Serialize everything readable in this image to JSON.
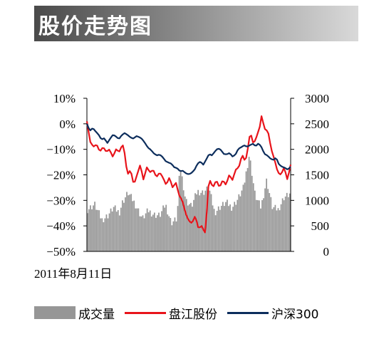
{
  "banner": {
    "title": "股价走势图"
  },
  "chart_data": {
    "type": "line",
    "title": "股价走势图",
    "date_label": "2011年8月11日",
    "left_axis": {
      "ticks": [
        "10%",
        "0%",
        "−10%",
        "−20%",
        "−30%",
        "−40%",
        "−50%"
      ],
      "ylim": [
        -50,
        10
      ]
    },
    "right_axis": {
      "ticks": [
        "3000",
        "2500",
        "2000",
        "1500",
        "1000",
        "500",
        "0"
      ],
      "ylim": [
        0,
        3000
      ]
    },
    "x_count": 120,
    "series": [
      {
        "name": "盘江股份",
        "axis": "left",
        "color": "#e8141b",
        "keypoints": [
          [
            0,
            1
          ],
          [
            2,
            -7
          ],
          [
            4,
            -9
          ],
          [
            6,
            -8
          ],
          [
            8,
            -11
          ],
          [
            10,
            -9
          ],
          [
            12,
            -11
          ],
          [
            14,
            -10
          ],
          [
            16,
            -13
          ],
          [
            18,
            -10
          ],
          [
            20,
            -11
          ],
          [
            22,
            -8
          ],
          [
            23,
            -10
          ],
          [
            25,
            -20
          ],
          [
            27,
            -18
          ],
          [
            29,
            -24
          ],
          [
            31,
            -20
          ],
          [
            33,
            -16
          ],
          [
            35,
            -22
          ],
          [
            37,
            -17
          ],
          [
            39,
            -19
          ],
          [
            41,
            -18
          ],
          [
            43,
            -21
          ],
          [
            45,
            -19
          ],
          [
            47,
            -21
          ],
          [
            49,
            -24
          ],
          [
            51,
            -21
          ],
          [
            53,
            -25
          ],
          [
            55,
            -23
          ],
          [
            57,
            -28
          ],
          [
            59,
            -30
          ],
          [
            61,
            -35
          ],
          [
            63,
            -38
          ],
          [
            65,
            -39
          ],
          [
            67,
            -36
          ],
          [
            69,
            -41
          ],
          [
            71,
            -40
          ],
          [
            73,
            -43
          ],
          [
            74,
            -36
          ],
          [
            75,
            -25
          ],
          [
            76,
            -22
          ],
          [
            78,
            -25
          ],
          [
            80,
            -22
          ],
          [
            82,
            -25
          ],
          [
            84,
            -22
          ],
          [
            86,
            -24
          ],
          [
            88,
            -20
          ],
          [
            90,
            -22
          ],
          [
            92,
            -18
          ],
          [
            94,
            -17
          ],
          [
            96,
            -12
          ],
          [
            98,
            -15
          ],
          [
            100,
            -8
          ],
          [
            101,
            -3
          ],
          [
            103,
            -8
          ],
          [
            105,
            -5
          ],
          [
            107,
            -1
          ],
          [
            108,
            3
          ],
          [
            110,
            -2
          ],
          [
            112,
            -3
          ],
          [
            114,
            -10
          ],
          [
            116,
            -14
          ],
          [
            118,
            -19
          ],
          [
            120,
            -20
          ],
          [
            122,
            -17
          ],
          [
            124,
            -22
          ],
          [
            126,
            -16
          ]
        ]
      },
      {
        "name": "沪深300",
        "axis": "right",
        "color": "#0c2d5c",
        "keypoints": [
          [
            0,
            2500
          ],
          [
            2,
            2360
          ],
          [
            4,
            2420
          ],
          [
            6,
            2350
          ],
          [
            8,
            2290
          ],
          [
            10,
            2190
          ],
          [
            12,
            2220
          ],
          [
            14,
            2120
          ],
          [
            16,
            2210
          ],
          [
            18,
            2290
          ],
          [
            20,
            2250
          ],
          [
            22,
            2200
          ],
          [
            24,
            2280
          ],
          [
            26,
            2320
          ],
          [
            28,
            2280
          ],
          [
            30,
            2230
          ],
          [
            32,
            2210
          ],
          [
            34,
            2260
          ],
          [
            36,
            2240
          ],
          [
            38,
            2200
          ],
          [
            40,
            2120
          ],
          [
            42,
            2030
          ],
          [
            44,
            1990
          ],
          [
            46,
            1920
          ],
          [
            48,
            1880
          ],
          [
            50,
            1900
          ],
          [
            52,
            1850
          ],
          [
            54,
            1770
          ],
          [
            56,
            1740
          ],
          [
            58,
            1720
          ],
          [
            60,
            1650
          ],
          [
            62,
            1630
          ],
          [
            64,
            1570
          ],
          [
            66,
            1580
          ],
          [
            68,
            1530
          ],
          [
            70,
            1510
          ],
          [
            72,
            1540
          ],
          [
            74,
            1600
          ],
          [
            76,
            1720
          ],
          [
            78,
            1760
          ],
          [
            80,
            1700
          ],
          [
            82,
            1800
          ],
          [
            84,
            1910
          ],
          [
            86,
            1880
          ],
          [
            88,
            1960
          ],
          [
            90,
            2020
          ],
          [
            92,
            1990
          ],
          [
            94,
            1910
          ],
          [
            96,
            1900
          ],
          [
            98,
            1930
          ],
          [
            100,
            1860
          ],
          [
            102,
            1890
          ],
          [
            104,
            2010
          ],
          [
            106,
            2040
          ],
          [
            108,
            2080
          ],
          [
            110,
            2050
          ],
          [
            112,
            2080
          ],
          [
            114,
            2110
          ],
          [
            116,
            2060
          ],
          [
            118,
            2120
          ],
          [
            120,
            2040
          ],
          [
            122,
            1910
          ],
          [
            124,
            1880
          ],
          [
            126,
            1820
          ],
          [
            128,
            1790
          ],
          [
            130,
            1840
          ],
          [
            132,
            1700
          ],
          [
            134,
            1660
          ],
          [
            136,
            1640
          ],
          [
            138,
            1600
          ],
          [
            140,
            1660
          ]
        ]
      },
      {
        "name": "成交量",
        "axis": "right",
        "type": "bar",
        "color": "#969696",
        "keypoints": [
          [
            0,
            820
          ],
          [
            5,
            920
          ],
          [
            10,
            620
          ],
          [
            14,
            700
          ],
          [
            18,
            860
          ],
          [
            22,
            760
          ],
          [
            24,
            950
          ],
          [
            28,
            1150
          ],
          [
            32,
            980
          ],
          [
            36,
            760
          ],
          [
            38,
            640
          ],
          [
            42,
            800
          ],
          [
            46,
            720
          ],
          [
            50,
            700
          ],
          [
            54,
            920
          ],
          [
            58,
            560
          ],
          [
            62,
            640
          ],
          [
            64,
            1700
          ],
          [
            68,
            1000
          ],
          [
            72,
            880
          ],
          [
            76,
            1180
          ],
          [
            80,
            1150
          ],
          [
            84,
            1250
          ],
          [
            88,
            760
          ],
          [
            92,
            880
          ],
          [
            96,
            960
          ],
          [
            100,
            860
          ],
          [
            104,
            1020
          ],
          [
            108,
            1250
          ],
          [
            112,
            1900
          ],
          [
            116,
            1100
          ],
          [
            120,
            860
          ],
          [
            124,
            1400
          ],
          [
            128,
            860
          ],
          [
            132,
            820
          ],
          [
            136,
            1060
          ],
          [
            140,
            1120
          ]
        ]
      }
    ],
    "legend": [
      {
        "label": "成交量",
        "kind": "bar",
        "color": "#969696"
      },
      {
        "label": "盘江股份",
        "kind": "line",
        "color": "#e8141b"
      },
      {
        "label": "沪深300",
        "kind": "line",
        "color": "#0c2d5c"
      }
    ]
  }
}
